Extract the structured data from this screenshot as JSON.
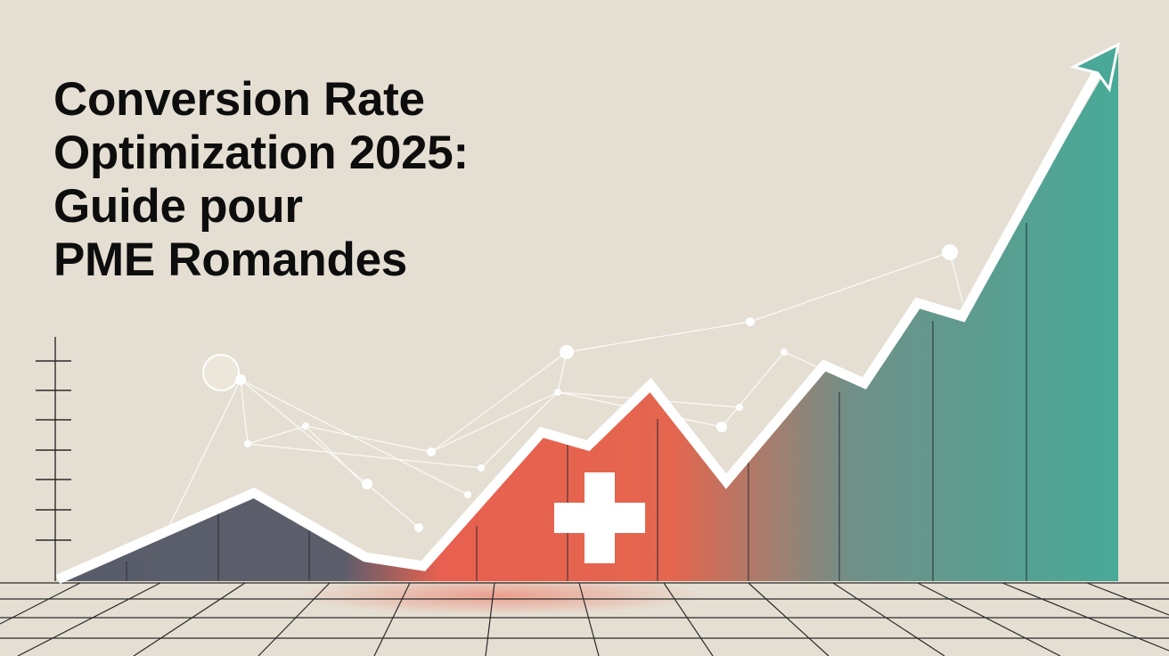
{
  "title": {
    "lines": [
      "Conversion Rate",
      "Optimization 2025:",
      "Guide pour",
      "PME Romandes"
    ]
  },
  "illustration": {
    "icons": [
      "swiss-cross-icon",
      "trend-arrow-icon"
    ],
    "colors": {
      "background": "#e5dfd3",
      "gray_area": "#5a5d6b",
      "red_area": "#e8604f",
      "teal_area": "#4aa898",
      "line": "#ffffff"
    }
  }
}
